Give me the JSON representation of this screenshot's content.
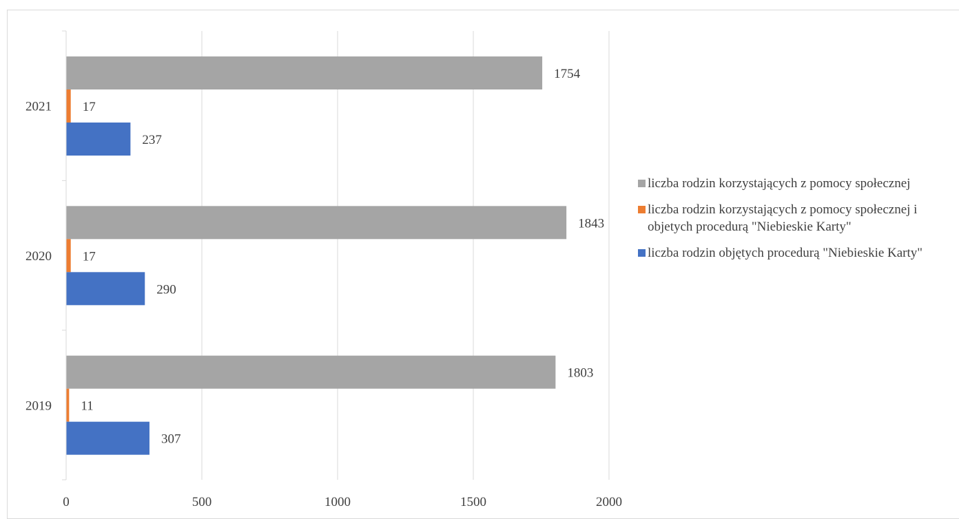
{
  "chart_data": {
    "type": "bar",
    "orientation": "horizontal",
    "categories": [
      "2019",
      "2020",
      "2021"
    ],
    "series": [
      {
        "name": "liczba rodzin objętych procedurą \"Niebieskie Karty\"",
        "color": "#4472c4",
        "values": [
          307,
          290,
          237
        ]
      },
      {
        "name": "liczba rodzin korzystających z pomocy społecznej i objetych procedurą \"Niebieskie Karty\"",
        "color": "#ed7d31",
        "values": [
          11,
          17,
          17
        ]
      },
      {
        "name": "liczba rodzin korzystających z pomocy społecznej",
        "color": "#a5a5a5",
        "values": [
          1803,
          1843,
          1754
        ]
      }
    ],
    "legend_order": [
      2,
      1,
      0
    ],
    "x_ticks": [
      0,
      500,
      1000,
      1500,
      2000
    ],
    "xlim": [
      0,
      2000
    ],
    "grid": true,
    "legend_position": "right",
    "data_labels": true
  }
}
